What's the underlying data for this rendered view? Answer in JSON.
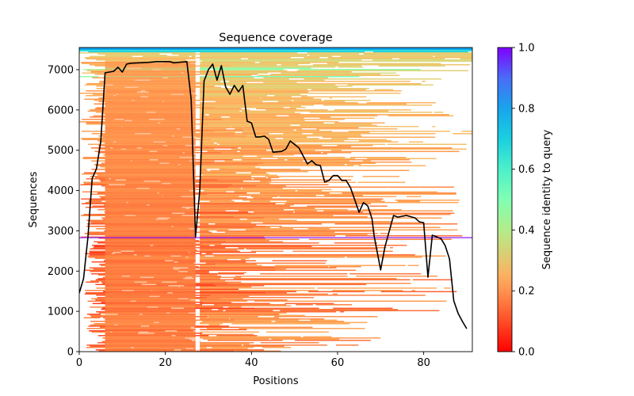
{
  "chart_data": {
    "type": "heatmap",
    "title": "Sequence coverage",
    "xlabel": "Positions",
    "ylabel": "Sequences",
    "xlim": [
      0,
      91.3
    ],
    "ylim": [
      0,
      7550
    ],
    "xticks": [
      0,
      20,
      40,
      60,
      80
    ],
    "yticks": [
      0,
      1000,
      2000,
      3000,
      4000,
      5000,
      6000,
      7000
    ],
    "grid": false,
    "colorbar": {
      "label": "Sequence identity to query",
      "range": [
        0,
        1
      ],
      "ticks": [
        0.0,
        0.2,
        0.4,
        0.6,
        0.8,
        1.0
      ],
      "colormap": "rainbow_r"
    },
    "query_line": {
      "sequence_index": 2830,
      "color": "#7f00ff"
    },
    "coverage_line": {
      "name": "coverage",
      "color": "#000000",
      "x": [
        0,
        1,
        2,
        3,
        4,
        5,
        6,
        7,
        8,
        9,
        10,
        11,
        12,
        14,
        16,
        18,
        20,
        21,
        22,
        24,
        25,
        26,
        27,
        28,
        29,
        30,
        31,
        32,
        33,
        34,
        35,
        36,
        37,
        38,
        39,
        40,
        41,
        42,
        43,
        44,
        45,
        47,
        48,
        49,
        51,
        53,
        54,
        55,
        56,
        57,
        58,
        59,
        60,
        61,
        62,
        63,
        65,
        66,
        67,
        68,
        68.5,
        70,
        71,
        73,
        74,
        76,
        78,
        79,
        80,
        81,
        82,
        84,
        85,
        86,
        87,
        88,
        89,
        90
      ],
      "y": [
        1455,
        1810,
        2830,
        4300,
        4540,
        5230,
        6920,
        6940,
        6960,
        7060,
        6940,
        7140,
        7160,
        7170,
        7180,
        7200,
        7200,
        7200,
        7170,
        7190,
        7200,
        6270,
        2850,
        4010,
        6720,
        7000,
        7140,
        6740,
        7100,
        6570,
        6390,
        6610,
        6450,
        6610,
        5720,
        5680,
        5330,
        5330,
        5350,
        5270,
        4950,
        4970,
        5030,
        5230,
        5060,
        4660,
        4740,
        4640,
        4620,
        4210,
        4250,
        4370,
        4370,
        4250,
        4250,
        4070,
        3460,
        3700,
        3620,
        3300,
        2870,
        2030,
        2600,
        3380,
        3340,
        3380,
        3320,
        3220,
        3200,
        1850,
        2890,
        2810,
        2630,
        2300,
        1260,
        950,
        750,
        570
      ]
    },
    "coverage_regions": [
      {
        "from_seq": 0,
        "to_seq": 7550,
        "dense_positions": [
          6,
          27
        ],
        "identity_mean": 0.18
      },
      {
        "from_seq": 0,
        "to_seq": 7550,
        "gap_positions": [
          27,
          28
        ]
      },
      {
        "from_seq": 2830,
        "to_seq": 7550,
        "dense_positions": [
          28,
          66
        ],
        "identity_mean": 0.25
      },
      {
        "from_seq": 6500,
        "to_seq": 7550,
        "high_identity_band": true,
        "identity_mean": 0.55
      }
    ]
  }
}
